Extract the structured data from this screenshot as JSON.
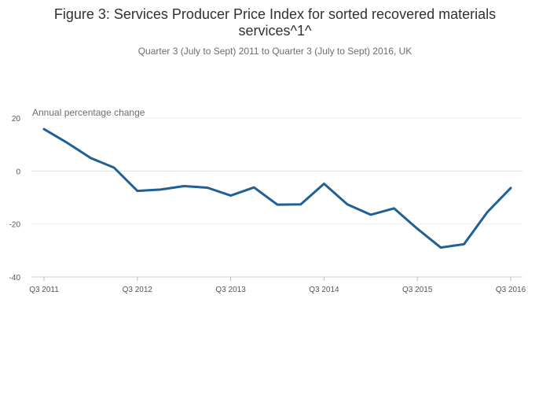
{
  "chart_data": {
    "type": "line",
    "title_lines": [
      "Figure 3: Services Producer Price Index for sorted recovered materials",
      "services^1^"
    ],
    "subtitle": "Quarter 3 (July to Sept) 2011 to Quarter 3 (July to Sept) 2016, UK",
    "ylabel": "Annual percentage change",
    "xlabel": "",
    "ylim": [
      -40,
      20
    ],
    "yticks": [
      20,
      0,
      -20,
      -40
    ],
    "ytick_labels": [
      "20",
      "0",
      "-20",
      "-40"
    ],
    "x_tick_labels": [
      "Q3 2011",
      "Q3 2012",
      "Q3 2013",
      "Q3 2014",
      "Q3 2015",
      "Q3 2016"
    ],
    "x_tick_index": [
      0,
      4,
      8,
      12,
      16,
      20
    ],
    "grid": true,
    "series": [
      {
        "name": "Annual percentage change",
        "color": "#206095",
        "categories": [
          "Q3 2011",
          "Q4 2011",
          "Q1 2012",
          "Q2 2012",
          "Q3 2012",
          "Q4 2012",
          "Q1 2013",
          "Q2 2013",
          "Q3 2013",
          "Q4 2013",
          "Q1 2014",
          "Q2 2014",
          "Q3 2014",
          "Q4 2014",
          "Q1 2015",
          "Q2 2015",
          "Q3 2015",
          "Q4 2015",
          "Q1 2016",
          "Q2 2016",
          "Q3 2016"
        ],
        "values": [
          15.8,
          10.6,
          4.9,
          1.3,
          -7.5,
          -7.0,
          -5.7,
          -6.3,
          -9.3,
          -6.2,
          -12.7,
          -12.6,
          -4.8,
          -12.6,
          -16.5,
          -14.1,
          -21.8,
          -28.9,
          -27.6,
          -15.5,
          -6.4
        ]
      }
    ]
  }
}
